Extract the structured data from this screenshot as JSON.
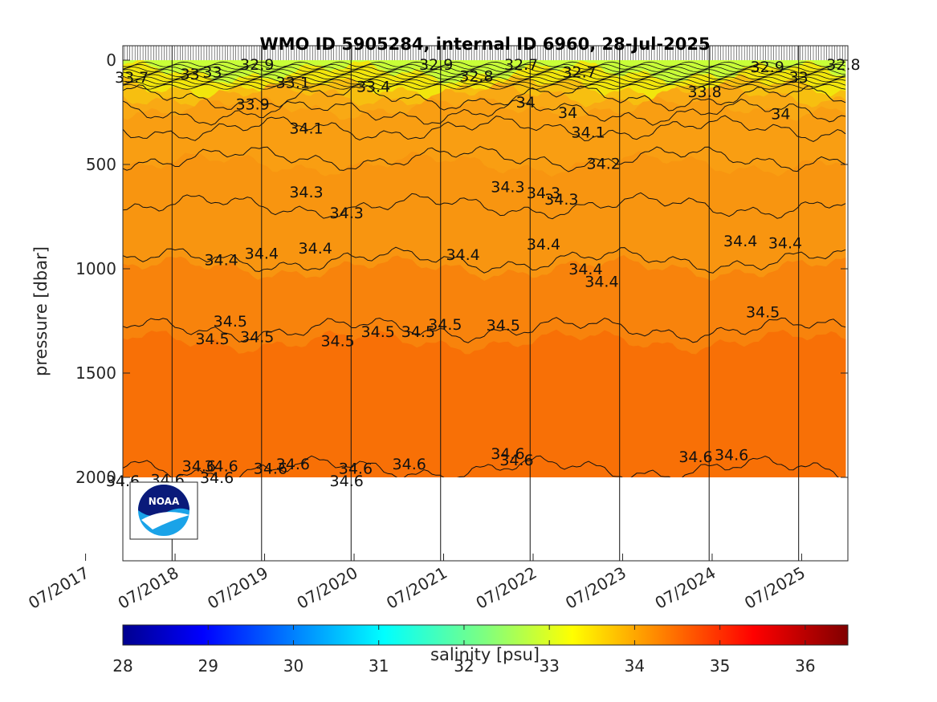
{
  "chart_data": {
    "type": "heatmap",
    "title": "WMO ID 5905284, internal ID 6960, 28-Jul-2025",
    "ylabel": "pressure [dbar]",
    "xlabel": "",
    "y_reversed": true,
    "ylim": [
      0,
      2400
    ],
    "y_ticks": [
      0,
      500,
      1000,
      1500,
      2000
    ],
    "x_ticks": [
      "07/2017",
      "07/2018",
      "07/2019",
      "07/2020",
      "07/2021",
      "07/2022",
      "07/2023",
      "07/2024",
      "07/2025"
    ],
    "x_tick_years": [
      2017.5,
      2018.5,
      2019.5,
      2020.5,
      2021.5,
      2022.5,
      2023.5,
      2024.5,
      2025.5
    ],
    "xlim": [
      2017.45,
      2025.55
    ],
    "profile_max_pressure": 2000,
    "salinity_layers": [
      {
        "from": 0,
        "to": 60,
        "color": "#c8ff38"
      },
      {
        "from": 60,
        "to": 130,
        "color": "#f2e60c"
      },
      {
        "from": 130,
        "to": 170,
        "color": "#f7bf10"
      },
      {
        "from": 170,
        "to": 230,
        "color": "#f9a914"
      },
      {
        "from": 230,
        "to": 500,
        "color": "#f99e12"
      },
      {
        "from": 500,
        "to": 1000,
        "color": "#f89510"
      },
      {
        "from": 1000,
        "to": 1350,
        "color": "#f8830c"
      },
      {
        "from": 1350,
        "to": 2000,
        "color": "#f87006"
      }
    ],
    "contours": [
      {
        "level": 33.9,
        "pressure": 180
      },
      {
        "level": 34.0,
        "pressure": 250
      },
      {
        "level": 34.1,
        "pressure": 330
      },
      {
        "level": 34.2,
        "pressure": 470
      },
      {
        "level": 34.3,
        "pressure": 700
      },
      {
        "level": 34.4,
        "pressure": 960
      },
      {
        "level": 34.5,
        "pressure": 1290
      },
      {
        "level": 34.6,
        "pressure": 1960
      }
    ],
    "contour_labels": [
      {
        "text": "33.7",
        "x": 2017.55,
        "p": 80
      },
      {
        "text": "33",
        "x": 2018.2,
        "p": 65
      },
      {
        "text": "33",
        "x": 2018.45,
        "p": 55
      },
      {
        "text": "32.9",
        "x": 2018.95,
        "p": 20
      },
      {
        "text": "33.1",
        "x": 2019.35,
        "p": 105
      },
      {
        "text": "33.4",
        "x": 2020.25,
        "p": 125
      },
      {
        "text": "32.9",
        "x": 2020.95,
        "p": 20
      },
      {
        "text": "32.8",
        "x": 2021.4,
        "p": 75
      },
      {
        "text": "32.7",
        "x": 2021.9,
        "p": 20
      },
      {
        "text": "32.7",
        "x": 2022.55,
        "p": 55
      },
      {
        "text": "33.8",
        "x": 2023.95,
        "p": 150
      },
      {
        "text": "32.9",
        "x": 2024.65,
        "p": 30
      },
      {
        "text": "33",
        "x": 2025.0,
        "p": 80
      },
      {
        "text": "32.8",
        "x": 2025.5,
        "p": 20
      },
      {
        "text": "33.9",
        "x": 2018.9,
        "p": 210
      },
      {
        "text": "34",
        "x": 2021.95,
        "p": 200
      },
      {
        "text": "34",
        "x": 2022.42,
        "p": 250
      },
      {
        "text": "34",
        "x": 2024.8,
        "p": 255
      },
      {
        "text": "34.1",
        "x": 2019.5,
        "p": 325
      },
      {
        "text": "34.1",
        "x": 2022.65,
        "p": 345
      },
      {
        "text": "34.2",
        "x": 2022.82,
        "p": 495
      },
      {
        "text": "34.3",
        "x": 2019.5,
        "p": 630
      },
      {
        "text": "34.3",
        "x": 2019.95,
        "p": 730
      },
      {
        "text": "34.3",
        "x": 2021.75,
        "p": 605
      },
      {
        "text": "34.3",
        "x": 2022.15,
        "p": 635
      },
      {
        "text": "34.3",
        "x": 2022.35,
        "p": 665
      },
      {
        "text": "34.4",
        "x": 2018.55,
        "p": 955
      },
      {
        "text": "34.4",
        "x": 2019.0,
        "p": 925
      },
      {
        "text": "34.4",
        "x": 2019.6,
        "p": 900
      },
      {
        "text": "34.4",
        "x": 2021.25,
        "p": 930
      },
      {
        "text": "34.4",
        "x": 2022.15,
        "p": 880
      },
      {
        "text": "34.4",
        "x": 2022.62,
        "p": 1000
      },
      {
        "text": "34.4",
        "x": 2022.8,
        "p": 1060
      },
      {
        "text": "34.4",
        "x": 2024.35,
        "p": 865
      },
      {
        "text": "34.4",
        "x": 2024.85,
        "p": 875
      },
      {
        "text": "34.5",
        "x": 2018.65,
        "p": 1250
      },
      {
        "text": "34.5",
        "x": 2018.45,
        "p": 1335
      },
      {
        "text": "34.5",
        "x": 2018.95,
        "p": 1325
      },
      {
        "text": "34.5",
        "x": 2019.85,
        "p": 1345
      },
      {
        "text": "34.5",
        "x": 2020.3,
        "p": 1300
      },
      {
        "text": "34.5",
        "x": 2020.75,
        "p": 1300
      },
      {
        "text": "34.5",
        "x": 2021.05,
        "p": 1265
      },
      {
        "text": "34.5",
        "x": 2021.7,
        "p": 1270
      },
      {
        "text": "34.5",
        "x": 2024.6,
        "p": 1205
      },
      {
        "text": "34.6",
        "x": 2017.45,
        "p": 2015
      },
      {
        "text": "34.6",
        "x": 2017.95,
        "p": 2010
      },
      {
        "text": "34.6",
        "x": 2018.3,
        "p": 1945
      },
      {
        "text": "34.6",
        "x": 2018.55,
        "p": 1945
      },
      {
        "text": "34.6",
        "x": 2018.5,
        "p": 2000
      },
      {
        "text": "34.6",
        "x": 2019.1,
        "p": 1955
      },
      {
        "text": "34.6",
        "x": 2019.35,
        "p": 1935
      },
      {
        "text": "34.6",
        "x": 2020.05,
        "p": 1955
      },
      {
        "text": "34.6",
        "x": 2019.95,
        "p": 2015
      },
      {
        "text": "34.6",
        "x": 2020.65,
        "p": 1935
      },
      {
        "text": "34.6",
        "x": 2021.75,
        "p": 1885
      },
      {
        "text": "34.6",
        "x": 2021.85,
        "p": 1915
      },
      {
        "text": "34.6",
        "x": 2023.85,
        "p": 1900
      },
      {
        "text": "34.6",
        "x": 2024.25,
        "p": 1890
      }
    ],
    "colorbar": {
      "label": "salinity [psu]",
      "min": 28,
      "max": 36.5,
      "ticks": [
        "28",
        "29",
        "30",
        "31",
        "32",
        "33",
        "34",
        "35",
        "36"
      ],
      "colormap": "jet"
    }
  }
}
